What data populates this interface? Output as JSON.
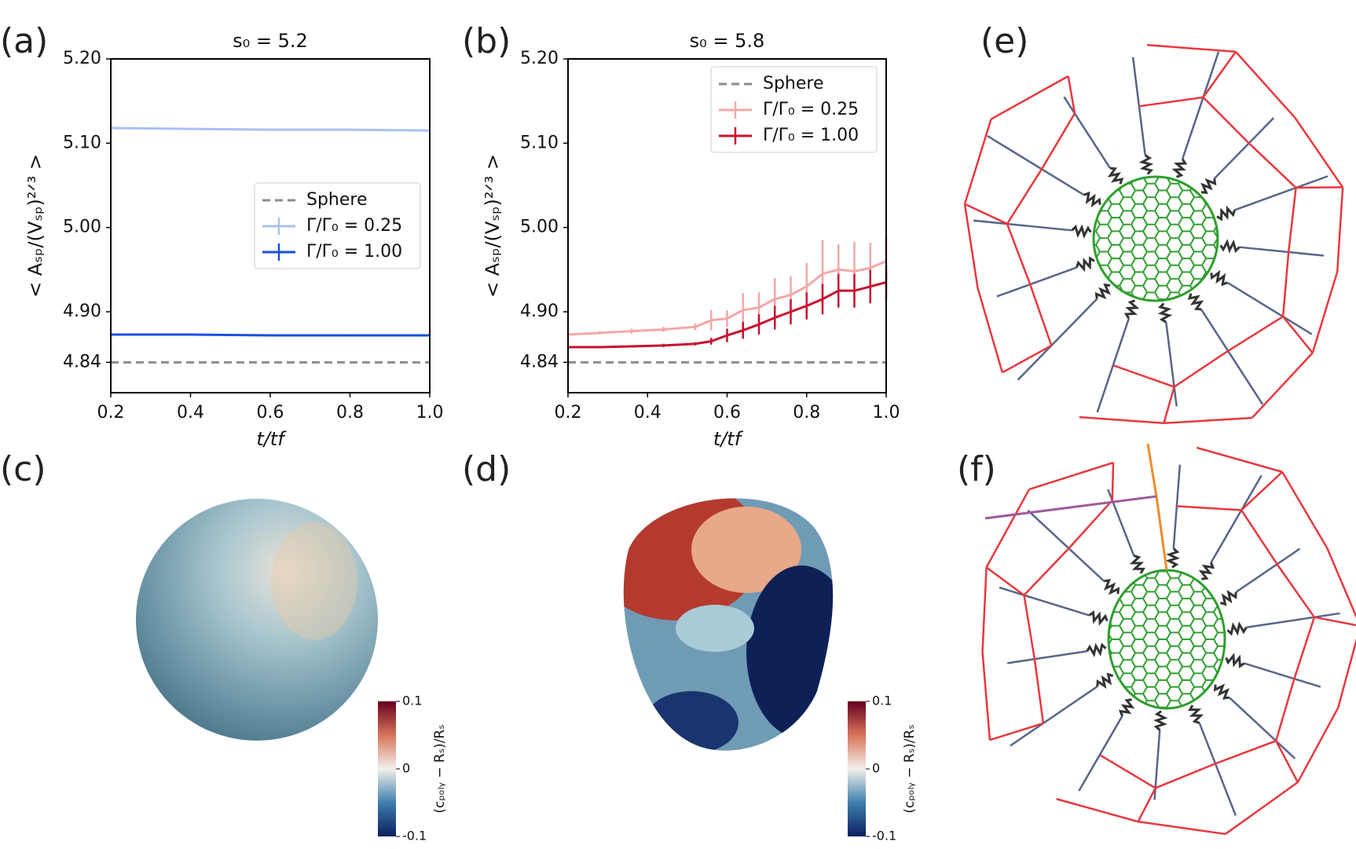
{
  "chart_data": [
    {
      "type": "line",
      "panel": "(a)",
      "title": "s₀ = 5.2",
      "x_label": "t/tf",
      "y_label": "< Aₛₚ/(Vₛₚ)²ᐟ³ >",
      "x": [
        0.2,
        0.4,
        0.6,
        0.8,
        1.0
      ],
      "series": [
        {
          "name": "Sphere",
          "color": "#8c8c8c",
          "linestyle": "dashed",
          "values": [
            4.84,
            4.84,
            4.84,
            4.84,
            4.84
          ]
        },
        {
          "name": "Γ/Γ₀ = 0.25",
          "color": "#a9bff5",
          "linestyle": "solid",
          "values": [
            5.118,
            5.117,
            5.116,
            5.116,
            5.115
          ],
          "errors": [
            0.001,
            0.001,
            0.001,
            0.001,
            0.001
          ]
        },
        {
          "name": "Γ/Γ₀ = 1.00",
          "color": "#1a4fe0",
          "linestyle": "solid",
          "values": [
            4.873,
            4.873,
            4.872,
            4.872,
            4.872
          ],
          "errors": [
            0.0005,
            0.0005,
            0.0005,
            0.0005,
            0.0005
          ]
        }
      ],
      "xlim": [
        0.2,
        1.0
      ],
      "xticks": [
        0.2,
        0.4,
        0.6,
        0.8,
        {
          "value": 1.0,
          "label": "1.0"
        }
      ],
      "ylim": [
        4.804,
        5.2
      ],
      "yticks": [
        4.84,
        {
          "value": 4.9,
          "label": "4.90"
        },
        {
          "value": 5.0,
          "label": "5.00"
        },
        {
          "value": 5.1,
          "label": "5.10"
        },
        {
          "value": 5.2,
          "label": "5.20"
        }
      ],
      "legend": "center right"
    },
    {
      "type": "line",
      "panel": "(b)",
      "title": "s₀ = 5.8",
      "x_label": "t/tf",
      "y_label": "< Aₛₚ/(Vₛₚ)²ᐟ³ >",
      "x": [
        0.2,
        0.28,
        0.36,
        0.44,
        0.52,
        0.56,
        0.6,
        0.64,
        0.68,
        0.72,
        0.76,
        0.8,
        0.84,
        0.88,
        0.92,
        0.96,
        1.0
      ],
      "series": [
        {
          "name": "Sphere",
          "color": "#8c8c8c",
          "linestyle": "dashed",
          "values": [
            4.84,
            4.84,
            4.84,
            4.84,
            4.84,
            4.84,
            4.84,
            4.84,
            4.84,
            4.84,
            4.84,
            4.84,
            4.84,
            4.84,
            4.84,
            4.84,
            4.84
          ]
        },
        {
          "name": "Γ/Γ₀ = 0.25",
          "color": "#f4a7a7",
          "linestyle": "solid",
          "values": [
            4.873,
            4.875,
            4.877,
            4.879,
            4.882,
            4.89,
            4.892,
            4.902,
            4.905,
            4.915,
            4.92,
            4.93,
            4.945,
            4.95,
            4.948,
            4.952,
            4.96
          ],
          "errors": [
            0.002,
            0.002,
            0.003,
            0.003,
            0.004,
            0.012,
            0.01,
            0.02,
            0.018,
            0.025,
            0.022,
            0.028,
            0.04,
            0.03,
            0.035,
            0.03,
            0.03
          ]
        },
        {
          "name": "Γ/Γ₀ = 1.00",
          "color": "#c8102e",
          "linestyle": "solid",
          "values": [
            4.858,
            4.858,
            4.859,
            4.86,
            4.862,
            4.865,
            4.872,
            4.878,
            4.885,
            4.893,
            4.9,
            4.907,
            4.915,
            4.925,
            4.925,
            4.93,
            4.935
          ],
          "errors": [
            0.001,
            0.001,
            0.001,
            0.002,
            0.002,
            0.004,
            0.008,
            0.01,
            0.012,
            0.014,
            0.015,
            0.016,
            0.018,
            0.02,
            0.02,
            0.02,
            0.02
          ]
        }
      ],
      "xlim": [
        0.2,
        1.0
      ],
      "xticks": [
        0.2,
        0.4,
        0.6,
        0.8,
        {
          "value": 1.0,
          "label": "1.0"
        }
      ],
      "ylim": [
        4.804,
        5.2
      ],
      "yticks": [
        4.84,
        {
          "value": 4.9,
          "label": "4.90"
        },
        {
          "value": 5.0,
          "label": "5.00"
        },
        {
          "value": 5.1,
          "label": "5.10"
        },
        {
          "value": 5.2,
          "label": "5.20"
        }
      ],
      "legend": "upper right"
    }
  ],
  "panels": [
    {
      "label": "(c)",
      "colorbar": {
        "label": "(cₚₒₗᵧ − Rₛ)/Rₛ",
        "lim": [
          -0.1,
          0.1
        ],
        "ticks": [
          0.1,
          0,
          -0.1
        ]
      }
    },
    {
      "label": "(d)",
      "colorbar": {
        "label": "(cₚₒₗᵧ − Rₛ)/Rₛ",
        "lim": [
          -0.1,
          0.1
        ],
        "ticks": [
          0.1,
          0,
          -0.1
        ]
      }
    },
    {
      "label": "(e)"
    },
    {
      "label": "(f)"
    }
  ]
}
